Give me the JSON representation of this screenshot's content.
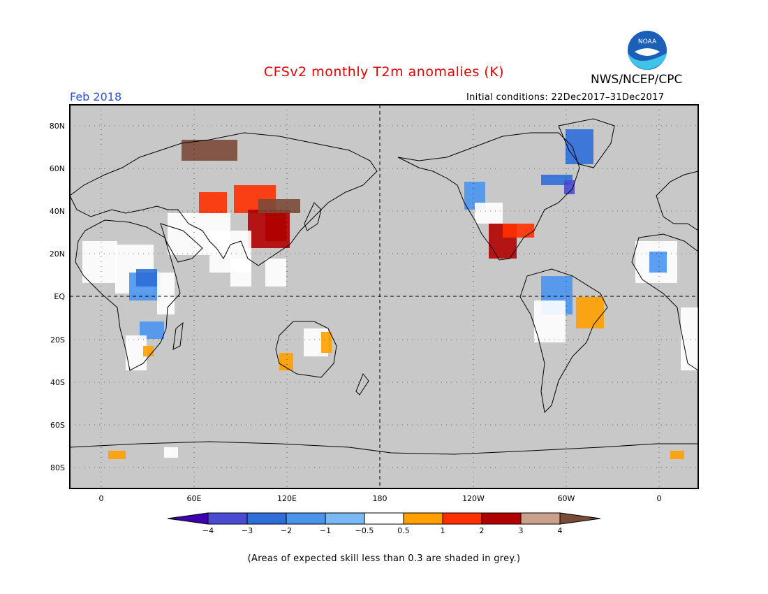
{
  "title": "CFSv2 monthly T2m anomalies (K)",
  "agency": "NWS/NCEP/CPC",
  "logo_text": "NOAA",
  "month_label": "Feb 2018",
  "initial_conditions": "Initial conditions: 22Dec2017–31Dec2017",
  "footnote": "(Areas of expected skill less than 0.3 are shaded in grey.)",
  "lat_labels": [
    "80N",
    "60N",
    "40N",
    "20N",
    "EQ",
    "20S",
    "40S",
    "60S",
    "80S"
  ],
  "lon_labels": [
    "0",
    "60E",
    "120E",
    "180",
    "120W",
    "60W",
    "0"
  ],
  "colorbar": {
    "tick_labels": [
      "−4",
      "−3",
      "−2",
      "−1",
      "−0.5",
      "0.5",
      "1",
      "2",
      "3",
      "4"
    ],
    "colors": [
      "#3d00ae",
      "#4a4ad2",
      "#2e6ed8",
      "#4a94ee",
      "#78b8f4",
      "#ffffff",
      "#ffa000",
      "#ff3000",
      "#b00000",
      "#c8a08c",
      "#7a4a38"
    ]
  },
  "colors": {
    "skill_mask": "#c8c8c8",
    "title": "#e00000",
    "month": "#2a4fd6"
  }
}
